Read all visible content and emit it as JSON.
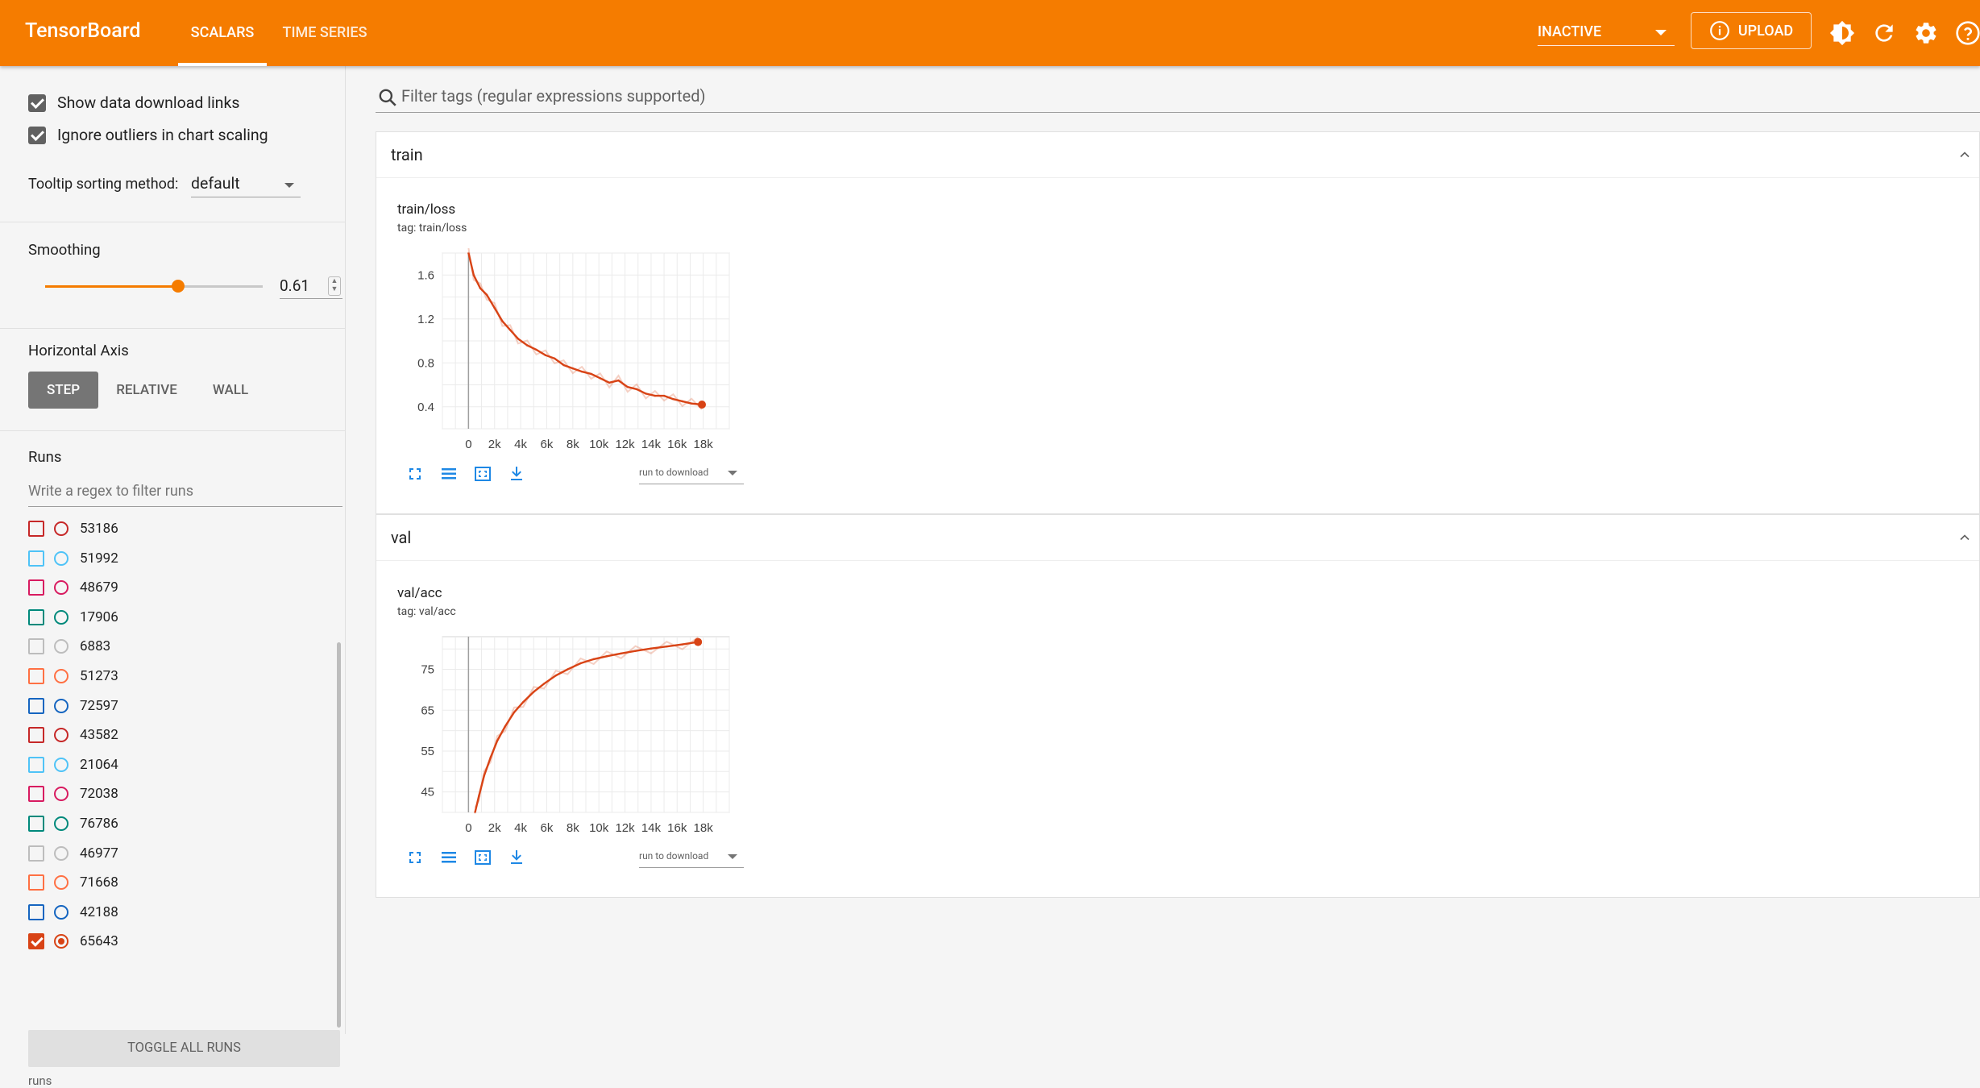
{
  "app": {
    "title": "TensorBoard",
    "accent_color": "#f57c00",
    "tabs": [
      {
        "label": "SCALARS",
        "active": true
      },
      {
        "label": "TIME SERIES",
        "active": false
      }
    ],
    "run_state": "INACTIVE",
    "upload_label": "UPLOAD",
    "toolbar_icons": [
      "brightness-icon",
      "refresh-icon",
      "settings-icon",
      "help-icon"
    ]
  },
  "sidebar": {
    "options": [
      {
        "label": "Show data download links",
        "checked": true
      },
      {
        "label": "Ignore outliers in chart scaling",
        "checked": true
      }
    ],
    "tooltip_sorting": {
      "label": "Tooltip sorting method:",
      "value": "default"
    },
    "smoothing": {
      "label": "Smoothing",
      "value": "0.61",
      "level": 0.61
    },
    "horizontal_axis": {
      "label": "Horizontal Axis",
      "options": [
        "STEP",
        "RELATIVE",
        "WALL"
      ],
      "selected": "STEP"
    },
    "runs": {
      "label": "Runs",
      "filter_placeholder": "Write a regex to filter runs",
      "items": [
        {
          "name": "53186",
          "color": "#c62828",
          "checked": false
        },
        {
          "name": "51992",
          "color": "#4fc3f7",
          "checked": false
        },
        {
          "name": "48679",
          "color": "#d81b60",
          "checked": false
        },
        {
          "name": "17906",
          "color": "#00897b",
          "checked": false
        },
        {
          "name": "6883",
          "color": "#bdbdbd",
          "checked": false
        },
        {
          "name": "51273",
          "color": "#ff7043",
          "checked": false
        },
        {
          "name": "72597",
          "color": "#1565c0",
          "checked": false
        },
        {
          "name": "43582",
          "color": "#c62828",
          "checked": false
        },
        {
          "name": "21064",
          "color": "#4fc3f7",
          "checked": false
        },
        {
          "name": "72038",
          "color": "#d81b60",
          "checked": false
        },
        {
          "name": "76786",
          "color": "#00897b",
          "checked": false
        },
        {
          "name": "46977",
          "color": "#bdbdbd",
          "checked": false
        },
        {
          "name": "71668",
          "color": "#ff7043",
          "checked": false
        },
        {
          "name": "42188",
          "color": "#1565c0",
          "checked": false
        },
        {
          "name": "65643",
          "color": "#d84315",
          "checked": true
        }
      ],
      "toggle_all_label": "TOGGLE ALL RUNS",
      "footer": "runs"
    }
  },
  "main": {
    "filter_placeholder": "Filter tags (regular expressions supported)",
    "download_select": "run to download",
    "groups": [
      {
        "name": "train",
        "chart_title": "train/loss",
        "chart_tag": "tag: train/loss"
      },
      {
        "name": "val",
        "chart_title": "val/acc",
        "chart_tag": "tag: val/acc"
      }
    ]
  },
  "chart_data": [
    {
      "type": "line",
      "title": "train/loss",
      "subtitle": "tag: train/loss",
      "xticks": [
        "0",
        "2k",
        "4k",
        "6k",
        "8k",
        "10k",
        "12k",
        "14k",
        "16k",
        "18k"
      ],
      "yticks": [
        "0.4",
        "0.8",
        "1.2",
        "1.6"
      ],
      "xlim": [
        -2000,
        20000
      ],
      "ylim": [
        0.2,
        1.8
      ],
      "grid": true,
      "series": [
        {
          "color": "#d84315",
          "x": [
            0,
            400,
            900,
            1400,
            2000,
            2600,
            3200,
            3800,
            4500,
            5200,
            5900,
            6600,
            7300,
            8000,
            8700,
            9400,
            10100,
            10800,
            11500,
            12200,
            12900,
            13600,
            14300,
            15000,
            15700,
            16400,
            17100,
            17900
          ],
          "y": [
            1.8,
            1.6,
            1.48,
            1.42,
            1.3,
            1.18,
            1.1,
            1.02,
            0.96,
            0.92,
            0.87,
            0.84,
            0.78,
            0.75,
            0.72,
            0.7,
            0.66,
            0.62,
            0.64,
            0.58,
            0.56,
            0.52,
            0.5,
            0.5,
            0.47,
            0.45,
            0.43,
            0.42
          ]
        }
      ]
    },
    {
      "type": "line",
      "title": "val/acc",
      "subtitle": "tag: val/acc",
      "xticks": [
        "0",
        "2k",
        "4k",
        "6k",
        "8k",
        "10k",
        "12k",
        "14k",
        "16k",
        "18k"
      ],
      "yticks": [
        "45",
        "55",
        "65",
        "75"
      ],
      "xlim": [
        -2000,
        20000
      ],
      "ylim": [
        40,
        83
      ],
      "grid": true,
      "series": [
        {
          "color": "#d84315",
          "x": [
            500,
            800,
            1200,
            1700,
            2200,
            2800,
            3500,
            4200,
            5000,
            5800,
            6700,
            7600,
            8600,
            9600,
            10600,
            11700,
            12800,
            14000,
            15200,
            16400,
            17600
          ],
          "y": [
            40,
            44,
            49,
            53.5,
            57.5,
            61,
            64.5,
            67,
            69.5,
            71.5,
            73.5,
            75,
            76.5,
            77.5,
            78.2,
            78.9,
            79.5,
            80.1,
            80.6,
            81.1,
            81.7
          ]
        }
      ]
    }
  ]
}
